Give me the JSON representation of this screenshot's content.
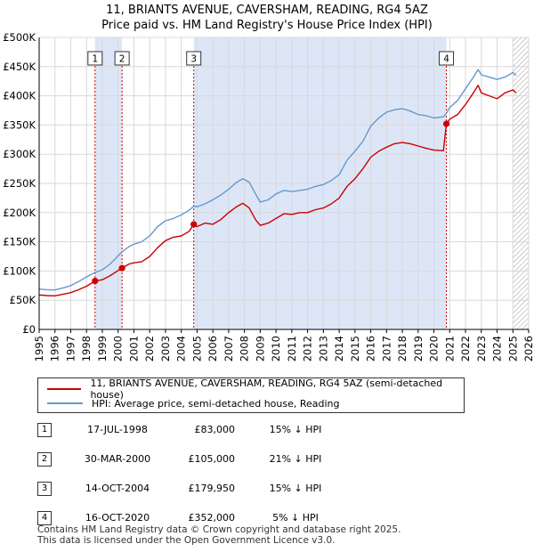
{
  "title_line1": "11, BRIANTS AVENUE, CAVERSHAM, READING, RG4 5AZ",
  "title_line2": "Price paid vs. HM Land Registry's House Price Index (HPI)",
  "colors": {
    "property": "#cc0000",
    "hpi": "#6699cc",
    "shade": "#dde6f7",
    "marker_line": "#cc0000"
  },
  "chart_data": {
    "type": "line",
    "title": "11, BRIANTS AVENUE, CAVERSHAM, READING, RG4 5AZ — Price paid vs. HM Land Registry's House Price Index (HPI)",
    "xlabel": "",
    "ylabel": "",
    "xlim": [
      1995,
      2026
    ],
    "ylim": [
      0,
      500000
    ],
    "y_ticks": [
      {
        "value": 0,
        "label": "£0"
      },
      {
        "value": 50000,
        "label": "£50K"
      },
      {
        "value": 100000,
        "label": "£100K"
      },
      {
        "value": 150000,
        "label": "£150K"
      },
      {
        "value": 200000,
        "label": "£200K"
      },
      {
        "value": 250000,
        "label": "£250K"
      },
      {
        "value": 300000,
        "label": "£300K"
      },
      {
        "value": 350000,
        "label": "£350K"
      },
      {
        "value": 400000,
        "label": "£400K"
      },
      {
        "value": 450000,
        "label": "£450K"
      },
      {
        "value": 500000,
        "label": "£500K"
      }
    ],
    "x_ticks": [
      "1995",
      "1996",
      "1997",
      "1998",
      "1999",
      "2000",
      "2001",
      "2002",
      "2003",
      "2004",
      "2005",
      "2006",
      "2007",
      "2008",
      "2009",
      "2010",
      "2011",
      "2012",
      "2013",
      "2014",
      "2015",
      "2016",
      "2017",
      "2018",
      "2019",
      "2020",
      "2021",
      "2022",
      "2023",
      "2024",
      "2025",
      "2026"
    ],
    "grid": true,
    "shaded_ranges": [
      [
        1998.54,
        2000.25
      ],
      [
        2004.79,
        2020.79
      ]
    ],
    "hatched_after": 2025.0,
    "series": [
      {
        "name": "11, BRIANTS AVENUE, CAVERSHAM, READING, RG4 5AZ (semi-detached house)",
        "points": [
          [
            1995,
            59000
          ],
          [
            1995.5,
            58000
          ],
          [
            1996,
            57500
          ],
          [
            1996.5,
            60000
          ],
          [
            1997,
            63000
          ],
          [
            1997.5,
            68000
          ],
          [
            1998,
            74000
          ],
          [
            1998.54,
            83000
          ],
          [
            1999,
            85000
          ],
          [
            1999.5,
            92000
          ],
          [
            2000.25,
            105000
          ],
          [
            2000.7,
            112000
          ],
          [
            2001,
            114000
          ],
          [
            2001.5,
            116000
          ],
          [
            2002,
            125000
          ],
          [
            2002.5,
            140000
          ],
          [
            2003,
            152000
          ],
          [
            2003.5,
            158000
          ],
          [
            2004,
            160000
          ],
          [
            2004.5,
            168000
          ],
          [
            2004.79,
            179950
          ],
          [
            2005,
            176000
          ],
          [
            2005.5,
            182000
          ],
          [
            2006,
            180000
          ],
          [
            2006.5,
            188000
          ],
          [
            2007,
            200000
          ],
          [
            2007.5,
            210000
          ],
          [
            2007.9,
            216000
          ],
          [
            2008.3,
            208000
          ],
          [
            2008.7,
            188000
          ],
          [
            2009,
            178000
          ],
          [
            2009.5,
            182000
          ],
          [
            2010,
            190000
          ],
          [
            2010.5,
            198000
          ],
          [
            2011,
            197000
          ],
          [
            2011.5,
            200000
          ],
          [
            2012,
            200000
          ],
          [
            2012.5,
            205000
          ],
          [
            2013,
            208000
          ],
          [
            2013.5,
            215000
          ],
          [
            2014,
            225000
          ],
          [
            2014.5,
            245000
          ],
          [
            2015,
            258000
          ],
          [
            2015.5,
            275000
          ],
          [
            2016,
            295000
          ],
          [
            2016.5,
            305000
          ],
          [
            2017,
            312000
          ],
          [
            2017.5,
            318000
          ],
          [
            2018,
            320000
          ],
          [
            2018.5,
            318000
          ],
          [
            2019,
            314000
          ],
          [
            2019.5,
            310000
          ],
          [
            2020,
            307000
          ],
          [
            2020.6,
            306000
          ],
          [
            2020.79,
            352000
          ],
          [
            2021,
            360000
          ],
          [
            2021.5,
            368000
          ],
          [
            2022,
            385000
          ],
          [
            2022.5,
            405000
          ],
          [
            2022.8,
            418000
          ],
          [
            2023,
            405000
          ],
          [
            2023.5,
            400000
          ],
          [
            2024,
            395000
          ],
          [
            2024.5,
            405000
          ],
          [
            2025,
            410000
          ],
          [
            2025.2,
            405000
          ]
        ]
      },
      {
        "name": "HPI: Average price, semi-detached house, Reading",
        "points": [
          [
            1995,
            69000
          ],
          [
            1995.5,
            68000
          ],
          [
            1996,
            67500
          ],
          [
            1996.5,
            71000
          ],
          [
            1997,
            75000
          ],
          [
            1997.5,
            82000
          ],
          [
            1998,
            90000
          ],
          [
            1998.54,
            97500
          ],
          [
            1999,
            102000
          ],
          [
            1999.5,
            112000
          ],
          [
            2000.25,
            133000
          ],
          [
            2000.7,
            142000
          ],
          [
            2001,
            146000
          ],
          [
            2001.5,
            150000
          ],
          [
            2002,
            160000
          ],
          [
            2002.5,
            176000
          ],
          [
            2003,
            186000
          ],
          [
            2003.5,
            190000
          ],
          [
            2004,
            196000
          ],
          [
            2004.5,
            204000
          ],
          [
            2004.79,
            211000
          ],
          [
            2005,
            210000
          ],
          [
            2005.5,
            215000
          ],
          [
            2006,
            222000
          ],
          [
            2006.5,
            230000
          ],
          [
            2007,
            240000
          ],
          [
            2007.5,
            252000
          ],
          [
            2007.9,
            258000
          ],
          [
            2008.3,
            252000
          ],
          [
            2008.7,
            232000
          ],
          [
            2009,
            218000
          ],
          [
            2009.5,
            222000
          ],
          [
            2010,
            232000
          ],
          [
            2010.5,
            238000
          ],
          [
            2011,
            236000
          ],
          [
            2011.5,
            238000
          ],
          [
            2012,
            240000
          ],
          [
            2012.5,
            245000
          ],
          [
            2013,
            248000
          ],
          [
            2013.5,
            255000
          ],
          [
            2014,
            265000
          ],
          [
            2014.5,
            290000
          ],
          [
            2015,
            305000
          ],
          [
            2015.5,
            322000
          ],
          [
            2016,
            348000
          ],
          [
            2016.5,
            362000
          ],
          [
            2017,
            372000
          ],
          [
            2017.5,
            376000
          ],
          [
            2018,
            378000
          ],
          [
            2018.5,
            374000
          ],
          [
            2019,
            368000
          ],
          [
            2019.5,
            366000
          ],
          [
            2020,
            362000
          ],
          [
            2020.6,
            364000
          ],
          [
            2020.79,
            370000
          ],
          [
            2021,
            380000
          ],
          [
            2021.5,
            392000
          ],
          [
            2022,
            412000
          ],
          [
            2022.5,
            432000
          ],
          [
            2022.8,
            445000
          ],
          [
            2023,
            436000
          ],
          [
            2023.5,
            432000
          ],
          [
            2024,
            428000
          ],
          [
            2024.5,
            432000
          ],
          [
            2025,
            440000
          ],
          [
            2025.2,
            435000
          ]
        ]
      }
    ],
    "sales": [
      {
        "num": "1",
        "x": 1998.54,
        "price": 83000
      },
      {
        "num": "2",
        "x": 2000.25,
        "price": 105000
      },
      {
        "num": "3",
        "x": 2004.79,
        "price": 179950
      },
      {
        "num": "4",
        "x": 2020.79,
        "price": 352000
      }
    ]
  },
  "legend": {
    "property_label": "11, BRIANTS AVENUE, CAVERSHAM, READING, RG4 5AZ (semi-detached house)",
    "hpi_label": "HPI: Average price, semi-detached house, Reading"
  },
  "transactions": [
    {
      "num": "1",
      "date": "17-JUL-1998",
      "price": "£83,000",
      "hpi": "15% ↓ HPI"
    },
    {
      "num": "2",
      "date": "30-MAR-2000",
      "price": "£105,000",
      "hpi": "21% ↓ HPI"
    },
    {
      "num": "3",
      "date": "14-OCT-2004",
      "price": "£179,950",
      "hpi": "15% ↓ HPI"
    },
    {
      "num": "4",
      "date": "16-OCT-2020",
      "price": "£352,000",
      "hpi": "5% ↓ HPI"
    }
  ],
  "footer": {
    "line1": "Contains HM Land Registry data © Crown copyright and database right 2025.",
    "line2": "This data is licensed under the Open Government Licence v3.0."
  }
}
